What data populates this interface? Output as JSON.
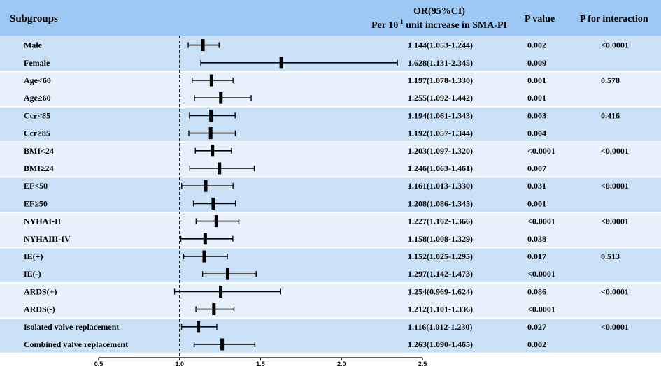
{
  "chart_data": {
    "type": "forest",
    "title": "",
    "headers": {
      "subgroups": "Subgroups",
      "or_line1": "OR(95%CI)",
      "or_line2_pre": "Per 10",
      "or_line2_sup": "-1",
      "or_line2_post": " unit increase in SMA-PI",
      "p_value": "P value",
      "p_interaction": "P for interaction"
    },
    "xaxis": {
      "min": 0.5,
      "max": 2.5,
      "ticks": [
        "0.5",
        "1.0",
        "1.5",
        "2.0",
        "2.5"
      ],
      "reference": 1.0
    },
    "colors": {
      "header": "#9cc8f3",
      "band_dark": "#c9e0f6",
      "band_light": "#e6f1fb",
      "line": "#000000"
    },
    "rows": [
      {
        "label": "Male",
        "or": 1.144,
        "lo": 1.053,
        "hi": 1.244,
        "ci_text": "1.144(1.053-1.244)",
        "p": "0.002",
        "p_int": "<0.0001"
      },
      {
        "label": "Female",
        "or": 1.628,
        "lo": 1.131,
        "hi": 2.345,
        "ci_text": "1.628(1.131-2.345)",
        "p": "0.009",
        "p_int": ""
      },
      {
        "label": "Age<60",
        "or": 1.197,
        "lo": 1.078,
        "hi": 1.33,
        "ci_text": "1.197(1.078-1.330)",
        "p": "0.001",
        "p_int": "0.578"
      },
      {
        "label": "Age≥60",
        "or": 1.255,
        "lo": 1.092,
        "hi": 1.442,
        "ci_text": "1.255(1.092-1.442)",
        "p": "0.001",
        "p_int": ""
      },
      {
        "label": "Ccr<85",
        "or": 1.194,
        "lo": 1.061,
        "hi": 1.343,
        "ci_text": "1.194(1.061-1.343)",
        "p": "0.003",
        "p_int": "0.416"
      },
      {
        "label": "Ccr≥85",
        "or": 1.192,
        "lo": 1.057,
        "hi": 1.344,
        "ci_text": "1.192(1.057-1.344)",
        "p": "0.004",
        "p_int": ""
      },
      {
        "label": "BMI<24",
        "or": 1.203,
        "lo": 1.097,
        "hi": 1.32,
        "ci_text": "1.203(1.097-1.320)",
        "p": "<0.0001",
        "p_int": "<0.0001"
      },
      {
        "label": "BMI≥24",
        "or": 1.246,
        "lo": 1.063,
        "hi": 1.461,
        "ci_text": "1.246(1.063-1.461)",
        "p": "0.007",
        "p_int": ""
      },
      {
        "label": "EF<50",
        "or": 1.161,
        "lo": 1.013,
        "hi": 1.33,
        "ci_text": "1.161(1.013-1.330)",
        "p": "0.031",
        "p_int": "<0.0001"
      },
      {
        "label": "EF≥50",
        "or": 1.208,
        "lo": 1.086,
        "hi": 1.345,
        "ci_text": "1.208(1.086-1.345)",
        "p": "0.001",
        "p_int": ""
      },
      {
        "label": "NYHAI-II",
        "or": 1.227,
        "lo": 1.102,
        "hi": 1.366,
        "ci_text": "1.227(1.102-1.366)",
        "p": "<0.0001",
        "p_int": "<0.0001"
      },
      {
        "label": "NYHAIII-IV",
        "or": 1.158,
        "lo": 1.008,
        "hi": 1.329,
        "ci_text": "1.158(1.008-1.329)",
        "p": "0.038",
        "p_int": ""
      },
      {
        "label": "IE(+)",
        "or": 1.152,
        "lo": 1.025,
        "hi": 1.295,
        "ci_text": "1.152(1.025-1.295)",
        "p": "0.017",
        "p_int": "0.513"
      },
      {
        "label": "IE(-)",
        "or": 1.297,
        "lo": 1.142,
        "hi": 1.473,
        "ci_text": "1.297(1.142-1.473)",
        "p": "<0.0001",
        "p_int": ""
      },
      {
        "label": "ARDS(+)",
        "or": 1.254,
        "lo": 0.969,
        "hi": 1.624,
        "ci_text": "1.254(0.969-1.624)",
        "p": "0.086",
        "p_int": "<0.0001"
      },
      {
        "label": "ARDS(-)",
        "or": 1.212,
        "lo": 1.101,
        "hi": 1.336,
        "ci_text": "1.212(1.101-1.336)",
        "p": "<0.0001",
        "p_int": ""
      },
      {
        "label": "Isolated valve replacement",
        "or": 1.116,
        "lo": 1.012,
        "hi": 1.23,
        "ci_text": "1.116(1.012-1.230)",
        "p": "0.027",
        "p_int": "<0.0001"
      },
      {
        "label": "Combined valve replacement",
        "or": 1.263,
        "lo": 1.09,
        "hi": 1.465,
        "ci_text": "1.263(1.090-1.465)",
        "p": "0.002",
        "p_int": ""
      }
    ]
  }
}
